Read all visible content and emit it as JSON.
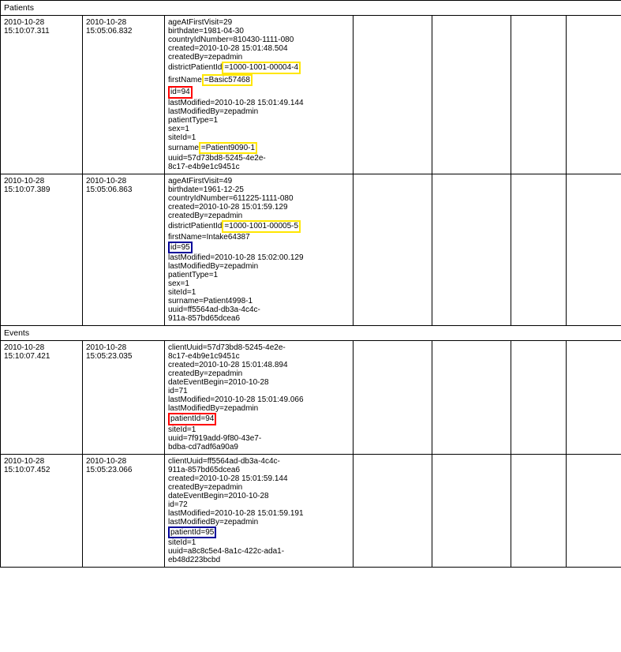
{
  "sections": {
    "patients": {
      "title": "Patients"
    },
    "events": {
      "title": "Events"
    }
  },
  "rows": {
    "p1": {
      "ts1": "2010-10-28 15:10:07.311",
      "ts2": "2010-10-28 15:05:06.832",
      "ageAtFirstVisit": "ageAtFirstVisit=29",
      "birthdate": "birthdate=1981-04-30",
      "countryIdNumber": "countryIdNumber=810430-1111-080",
      "created": "created=2010-10-28 15:01:48.504",
      "createdBy": "createdBy=zepadmin",
      "districtPatientId_pre": "districtPatientId",
      "districtPatientId_hl": "=1000-1001-00004-4",
      "firstName_pre": "firstName",
      "firstName_hl": "=Basic57468",
      "id": "id=94",
      "lastModified": "lastModified=2010-10-28 15:01:49.144",
      "lastModifiedBy": "lastModifiedBy=zepadmin",
      "patientType": "patientType=1",
      "sex": "sex=1",
      "siteId": "siteId=1",
      "surname_pre": "surname",
      "surname_hl": "=Patient9090-1",
      "uuid_l1": "uuid=57d73bd8-5245-4e2e-",
      "uuid_l2": "8c17-e4b9e1c9451c"
    },
    "p2": {
      "ts1": "2010-10-28 15:10:07.389",
      "ts2": "2010-10-28 15:05:06.863",
      "ageAtFirstVisit": "ageAtFirstVisit=49",
      "birthdate": "birthdate=1961-12-25",
      "countryIdNumber": "countryIdNumber=611225-1111-080",
      "created": "created=2010-10-28 15:01:59.129",
      "createdBy": "createdBy=zepadmin",
      "districtPatientId_pre": "districtPatientId",
      "districtPatientId_hl": "=1000-1001-00005-5",
      "firstName": "firstName=Intake64387",
      "id": "id=95",
      "lastModified": "lastModified=2010-10-28 15:02:00.129",
      "lastModifiedBy": "lastModifiedBy=zepadmin",
      "patientType": "patientType=1",
      "sex": "sex=1",
      "siteId": "siteId=1",
      "surname": "surname=Patient4998-1",
      "uuid_l1": "uuid=ff5564ad-db3a-4c4c-",
      "uuid_l2": "911a-857bd65dcea6"
    },
    "e1": {
      "ts1": "2010-10-28 15:10:07.421",
      "ts2": "2010-10-28 15:05:23.035",
      "clientUuid_l1": "clientUuid=57d73bd8-5245-4e2e-",
      "clientUuid_l2": "8c17-e4b9e1c9451c",
      "created": "created=2010-10-28 15:01:48.894",
      "createdBy": "createdBy=zepadmin",
      "dateEventBegin": "dateEventBegin=2010-10-28",
      "id": "id=71",
      "lastModified": "lastModified=2010-10-28 15:01:49.066",
      "lastModifiedBy": "lastModifiedBy=zepadmin",
      "patientId": "patientId=94",
      "siteId": "siteId=1",
      "uuid_l1": "uuid=7f919add-9f80-43e7-",
      "uuid_l2": "bdba-cd7adf6a90a9"
    },
    "e2": {
      "ts1": "2010-10-28 15:10:07.452",
      "ts2": "2010-10-28 15:05:23.066",
      "clientUuid_l1": "clientUuid=ff5564ad-db3a-4c4c-",
      "clientUuid_l2": "911a-857bd65dcea6",
      "created": "created=2010-10-28 15:01:59.144",
      "createdBy": "createdBy=zepadmin",
      "dateEventBegin": "dateEventBegin=2010-10-28",
      "id": "id=72",
      "lastModified": "lastModified=2010-10-28 15:01:59.191",
      "lastModifiedBy": "lastModifiedBy=zepadmin",
      "patientId": "patientId=95",
      "siteId": "siteId=1",
      "uuid_l1": "uuid=a8c8c5e4-8a1c-422c-ada1-",
      "uuid_l2": "eb48d223bcbd"
    }
  },
  "styles": {
    "highlight_yellow": "#ffe600",
    "highlight_red": "#ff0000",
    "highlight_blue": "#000099",
    "border_color": "#000000",
    "background": "#ffffff",
    "font_family": "Verdana",
    "font_size_pt": 7.5
  }
}
